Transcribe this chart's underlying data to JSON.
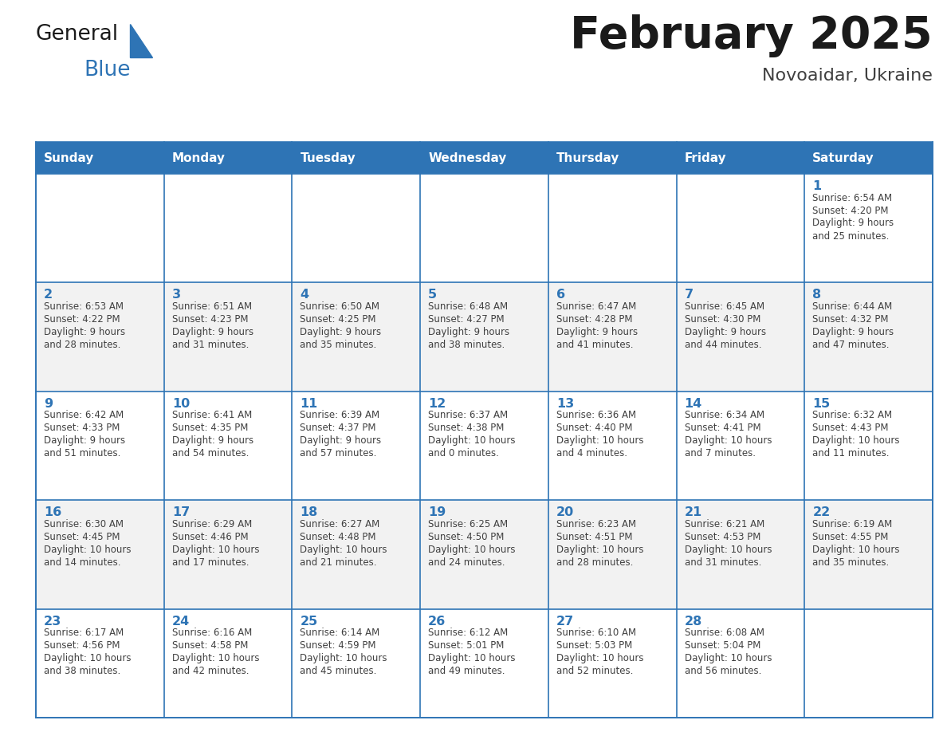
{
  "title": "February 2025",
  "subtitle": "Novoaidar, Ukraine",
  "header_bg": "#2E74B5",
  "header_text_color": "#FFFFFF",
  "weekdays": [
    "Sunday",
    "Monday",
    "Tuesday",
    "Wednesday",
    "Thursday",
    "Friday",
    "Saturday"
  ],
  "alt_row_bg": "#F2F2F2",
  "normal_row_bg": "#FFFFFF",
  "border_color": "#2E74B5",
  "day_text_color": "#2E74B5",
  "info_text_color": "#404040",
  "logo_general_color": "#1A1A1A",
  "logo_blue_color": "#2E74B5",
  "days": [
    {
      "date": 1,
      "col": 6,
      "row": 0,
      "sunrise": "6:54 AM",
      "sunset": "4:20 PM",
      "daylight": "9 hours and 25 minutes."
    },
    {
      "date": 2,
      "col": 0,
      "row": 1,
      "sunrise": "6:53 AM",
      "sunset": "4:22 PM",
      "daylight": "9 hours and 28 minutes."
    },
    {
      "date": 3,
      "col": 1,
      "row": 1,
      "sunrise": "6:51 AM",
      "sunset": "4:23 PM",
      "daylight": "9 hours and 31 minutes."
    },
    {
      "date": 4,
      "col": 2,
      "row": 1,
      "sunrise": "6:50 AM",
      "sunset": "4:25 PM",
      "daylight": "9 hours and 35 minutes."
    },
    {
      "date": 5,
      "col": 3,
      "row": 1,
      "sunrise": "6:48 AM",
      "sunset": "4:27 PM",
      "daylight": "9 hours and 38 minutes."
    },
    {
      "date": 6,
      "col": 4,
      "row": 1,
      "sunrise": "6:47 AM",
      "sunset": "4:28 PM",
      "daylight": "9 hours and 41 minutes."
    },
    {
      "date": 7,
      "col": 5,
      "row": 1,
      "sunrise": "6:45 AM",
      "sunset": "4:30 PM",
      "daylight": "9 hours and 44 minutes."
    },
    {
      "date": 8,
      "col": 6,
      "row": 1,
      "sunrise": "6:44 AM",
      "sunset": "4:32 PM",
      "daylight": "9 hours and 47 minutes."
    },
    {
      "date": 9,
      "col": 0,
      "row": 2,
      "sunrise": "6:42 AM",
      "sunset": "4:33 PM",
      "daylight": "9 hours and 51 minutes."
    },
    {
      "date": 10,
      "col": 1,
      "row": 2,
      "sunrise": "6:41 AM",
      "sunset": "4:35 PM",
      "daylight": "9 hours and 54 minutes."
    },
    {
      "date": 11,
      "col": 2,
      "row": 2,
      "sunrise": "6:39 AM",
      "sunset": "4:37 PM",
      "daylight": "9 hours and 57 minutes."
    },
    {
      "date": 12,
      "col": 3,
      "row": 2,
      "sunrise": "6:37 AM",
      "sunset": "4:38 PM",
      "daylight": "10 hours and 0 minutes."
    },
    {
      "date": 13,
      "col": 4,
      "row": 2,
      "sunrise": "6:36 AM",
      "sunset": "4:40 PM",
      "daylight": "10 hours and 4 minutes."
    },
    {
      "date": 14,
      "col": 5,
      "row": 2,
      "sunrise": "6:34 AM",
      "sunset": "4:41 PM",
      "daylight": "10 hours and 7 minutes."
    },
    {
      "date": 15,
      "col": 6,
      "row": 2,
      "sunrise": "6:32 AM",
      "sunset": "4:43 PM",
      "daylight": "10 hours and 11 minutes."
    },
    {
      "date": 16,
      "col": 0,
      "row": 3,
      "sunrise": "6:30 AM",
      "sunset": "4:45 PM",
      "daylight": "10 hours and 14 minutes."
    },
    {
      "date": 17,
      "col": 1,
      "row": 3,
      "sunrise": "6:29 AM",
      "sunset": "4:46 PM",
      "daylight": "10 hours and 17 minutes."
    },
    {
      "date": 18,
      "col": 2,
      "row": 3,
      "sunrise": "6:27 AM",
      "sunset": "4:48 PM",
      "daylight": "10 hours and 21 minutes."
    },
    {
      "date": 19,
      "col": 3,
      "row": 3,
      "sunrise": "6:25 AM",
      "sunset": "4:50 PM",
      "daylight": "10 hours and 24 minutes."
    },
    {
      "date": 20,
      "col": 4,
      "row": 3,
      "sunrise": "6:23 AM",
      "sunset": "4:51 PM",
      "daylight": "10 hours and 28 minutes."
    },
    {
      "date": 21,
      "col": 5,
      "row": 3,
      "sunrise": "6:21 AM",
      "sunset": "4:53 PM",
      "daylight": "10 hours and 31 minutes."
    },
    {
      "date": 22,
      "col": 6,
      "row": 3,
      "sunrise": "6:19 AM",
      "sunset": "4:55 PM",
      "daylight": "10 hours and 35 minutes."
    },
    {
      "date": 23,
      "col": 0,
      "row": 4,
      "sunrise": "6:17 AM",
      "sunset": "4:56 PM",
      "daylight": "10 hours and 38 minutes."
    },
    {
      "date": 24,
      "col": 1,
      "row": 4,
      "sunrise": "6:16 AM",
      "sunset": "4:58 PM",
      "daylight": "10 hours and 42 minutes."
    },
    {
      "date": 25,
      "col": 2,
      "row": 4,
      "sunrise": "6:14 AM",
      "sunset": "4:59 PM",
      "daylight": "10 hours and 45 minutes."
    },
    {
      "date": 26,
      "col": 3,
      "row": 4,
      "sunrise": "6:12 AM",
      "sunset": "5:01 PM",
      "daylight": "10 hours and 49 minutes."
    },
    {
      "date": 27,
      "col": 4,
      "row": 4,
      "sunrise": "6:10 AM",
      "sunset": "5:03 PM",
      "daylight": "10 hours and 52 minutes."
    },
    {
      "date": 28,
      "col": 5,
      "row": 4,
      "sunrise": "6:08 AM",
      "sunset": "5:04 PM",
      "daylight": "10 hours and 56 minutes."
    }
  ]
}
